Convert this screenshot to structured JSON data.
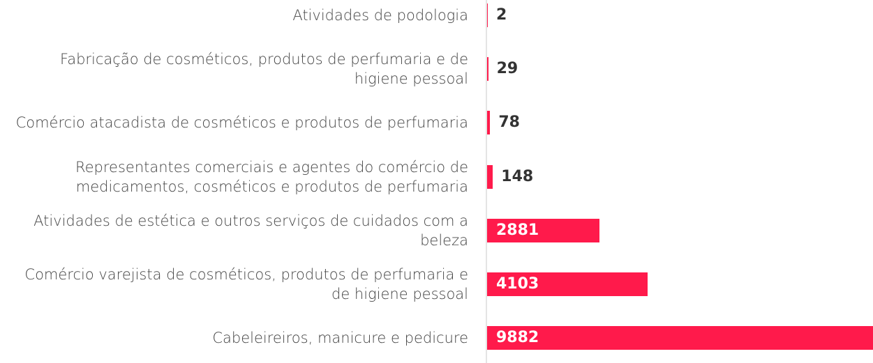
{
  "chart_data": {
    "type": "bar",
    "orientation": "horizontal",
    "categories": [
      "Atividades de podologia",
      "Fabricação de cosméticos, produtos de perfumaria e de higiene pessoal",
      "Comércio atacadista de cosméticos e produtos de perfumaria",
      "Representantes comerciais e agentes do comércio de medicamentos, cosméticos e produtos de perfumaria",
      "Atividades de estética e outros serviços de cuidados com a beleza",
      "Comércio varejista de cosméticos, produtos de perfumaria e de higiene pessoal",
      "Cabeleireiros, manicure e pedicure"
    ],
    "values": [
      2,
      29,
      78,
      148,
      2881,
      4103,
      9882
    ],
    "color": "#ff1a4b"
  }
}
